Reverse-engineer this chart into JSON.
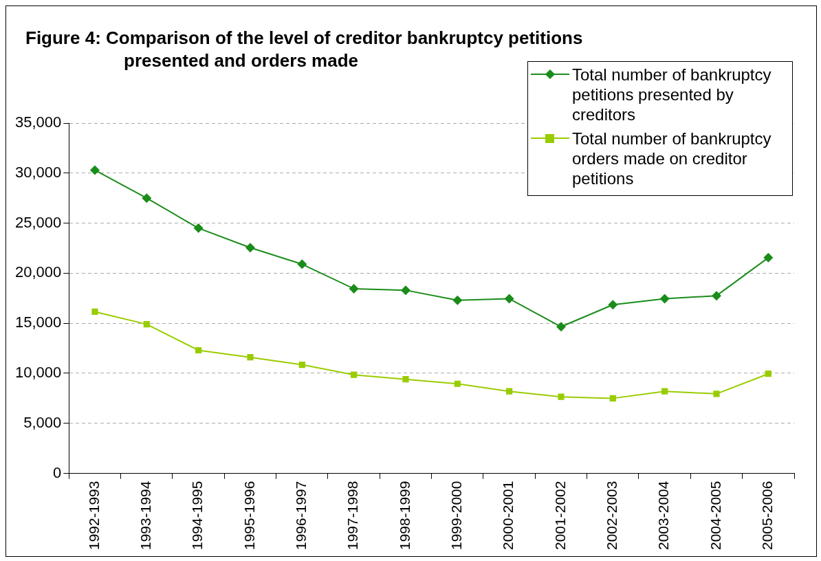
{
  "chart_data": {
    "type": "line",
    "title": "Figure 4: Comparison of the level of creditor bankruptcy petitions presented and orders made",
    "categories": [
      "1992-1993",
      "1993-1994",
      "1994-1995",
      "1995-1996",
      "1996-1997",
      "1997-1998",
      "1998-1999",
      "1999-2000",
      "2000-2001",
      "2001-2002",
      "2002-2003",
      "2003-2004",
      "2004-2005",
      "2005-2006"
    ],
    "series": [
      {
        "name": "Total number of bankruptcy petitions presented by creditors",
        "color": "#1a8c1a",
        "marker": "diamond",
        "values": [
          30300,
          27500,
          24500,
          22550,
          20900,
          18450,
          18300,
          17300,
          17450,
          14650,
          16850,
          17450,
          17750,
          21550
        ]
      },
      {
        "name": "Total number of bankruptcy orders made on creditor petitions",
        "color": "#99cc00",
        "marker": "square",
        "values": [
          16150,
          14900,
          12300,
          11600,
          10850,
          9850,
          9400,
          8950,
          8200,
          7650,
          7500,
          8200,
          7950,
          9950
        ]
      }
    ],
    "ylim": [
      0,
      35000
    ],
    "yticks": [
      {
        "value": 0,
        "label": "0"
      },
      {
        "value": 5000,
        "label": "5,000"
      },
      {
        "value": 10000,
        "label": "10,000"
      },
      {
        "value": 15000,
        "label": "15,000"
      },
      {
        "value": 20000,
        "label": "20,000"
      },
      {
        "value": 25000,
        "label": "25,000"
      },
      {
        "value": 30000,
        "label": "30,000"
      },
      {
        "value": 35000,
        "label": "35,000"
      }
    ],
    "grid": "y",
    "legend": "top right",
    "line_style": "solid"
  }
}
